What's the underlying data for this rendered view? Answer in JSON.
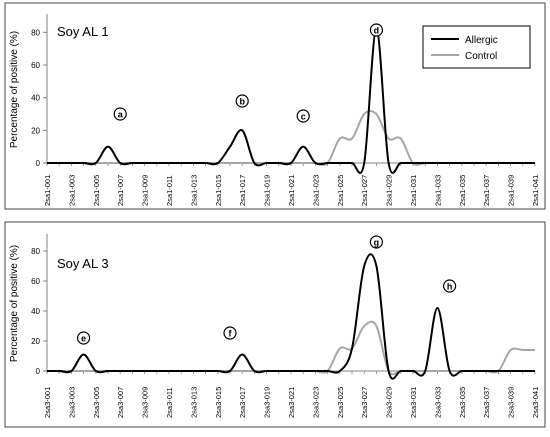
{
  "chart_data": [
    {
      "type": "line",
      "title": "Soy AL 1",
      "ylabel": "Percentage of positive (%)",
      "xlabel": "",
      "ylim": [
        0,
        90
      ],
      "yticks": [
        0,
        20,
        40,
        60,
        80
      ],
      "x_labels": [
        "2sa1-001",
        "2sa1-003",
        "2sa1-005",
        "2sa1-007",
        "2sa1-009",
        "2sa1-011",
        "2sa1-013",
        "2sa1-015",
        "2sa1-017",
        "2sa1-019",
        "2sa1-021",
        "2sa1-023",
        "2sa1-025",
        "2sa1-027",
        "2sa1-029",
        "2sa1-031",
        "2sa1-033",
        "2sa1-035",
        "2sa1-037",
        "2sa1-039",
        "2sa1-041"
      ],
      "grid": false,
      "legend": {
        "position": "top-right",
        "entries": [
          "Allergic",
          "Control"
        ]
      },
      "series": [
        {
          "name": "Allergic",
          "color": "#000000",
          "values": [
            0,
            0,
            0,
            0,
            0,
            10,
            0,
            0,
            0,
            0,
            0,
            0,
            0,
            0,
            0,
            10,
            20,
            0,
            0,
            0,
            0,
            10,
            0,
            0,
            0,
            0,
            0,
            82,
            0,
            0,
            0,
            0,
            0,
            0,
            0,
            0,
            0,
            0,
            0,
            0,
            0
          ]
        },
        {
          "name": "Control",
          "color": "#a6a6a6",
          "values": [
            0,
            0,
            0,
            0,
            0,
            0,
            0,
            0,
            0,
            0,
            0,
            0,
            0,
            0,
            0,
            0,
            0,
            0,
            0,
            0,
            0,
            0,
            0,
            0,
            15,
            15,
            30,
            30,
            15,
            15,
            0,
            0,
            0,
            0,
            0,
            0,
            0,
            0,
            0,
            0,
            0
          ]
        }
      ],
      "annotations": [
        "a",
        "b",
        "c",
        "d"
      ]
    },
    {
      "type": "line",
      "title": "Soy AL 3",
      "ylabel": "Percentage of positive (%)",
      "xlabel": "",
      "ylim": [
        0,
        90
      ],
      "yticks": [
        0,
        20,
        40,
        60,
        80
      ],
      "x_labels": [
        "2sa3-001",
        "2sa3-003",
        "2sa3-005",
        "2sa3-007",
        "2sa3-009",
        "2sa3-011",
        "2sa3-013",
        "2sa3-015",
        "2sa3-017",
        "2sa3-019",
        "2sa3-021",
        "2sa3-023",
        "2sa3-025",
        "2sa3-027",
        "2sa3-029",
        "2sa3-031",
        "2sa3-033",
        "2sa3-035",
        "2sa3-037",
        "2sa3-039",
        "2sa3-041"
      ],
      "grid": false,
      "series": [
        {
          "name": "Allergic",
          "color": "#000000",
          "values": [
            0,
            0,
            0,
            11,
            0,
            0,
            0,
            0,
            0,
            0,
            0,
            0,
            0,
            0,
            0,
            0,
            11,
            0,
            0,
            0,
            0,
            0,
            0,
            0,
            0,
            15,
            70,
            70,
            0,
            0,
            0,
            0,
            42,
            0,
            0,
            0,
            0,
            0,
            0,
            0,
            0
          ]
        },
        {
          "name": "Control",
          "color": "#a6a6a6",
          "values": [
            0,
            0,
            0,
            0,
            0,
            0,
            0,
            0,
            0,
            0,
            0,
            0,
            0,
            0,
            0,
            0,
            0,
            0,
            0,
            0,
            0,
            0,
            0,
            0,
            15,
            15,
            30,
            30,
            0,
            0,
            0,
            0,
            0,
            0,
            0,
            0,
            0,
            0,
            14,
            14,
            14
          ]
        }
      ],
      "annotations": [
        "e",
        "f",
        "g",
        "h"
      ]
    }
  ]
}
